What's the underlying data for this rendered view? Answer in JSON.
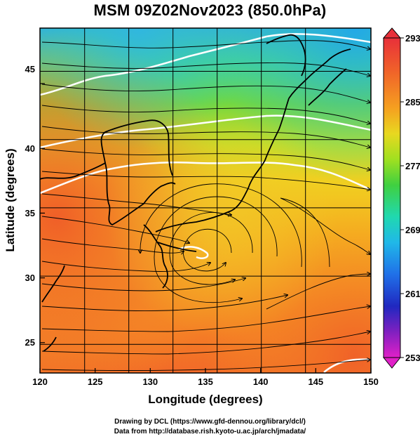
{
  "title": "MSM 09Z02Nov2023 (850.0hPa)",
  "credits": {
    "line1": "Drawing by DCL (https://www.gfd-dennou.org/library/dcl/)",
    "line2": "Data from http://database.rish.kyoto-u.ac.jp/arch/jmadata/"
  },
  "map": {
    "x_axis": {
      "label": "Longitude (degrees)",
      "ticks": [
        "120",
        "125",
        "130",
        "135",
        "140",
        "145",
        "150"
      ],
      "range": [
        120,
        150
      ]
    },
    "y_axis": {
      "label": "Latitude  (degrees)",
      "ticks": [
        "25",
        "30",
        "35",
        "40",
        "45"
      ],
      "range": [
        22.5,
        47.5
      ]
    },
    "field": "temperature (K) with streamlines and white contours",
    "low_center": {
      "lon": 134.5,
      "lat": 32.5
    }
  },
  "colorbar": {
    "ticks": [
      "293",
      "285",
      "277",
      "269",
      "261",
      "253"
    ],
    "colors": [
      "#e8303a",
      "#f06a2a",
      "#f5a020",
      "#f0d020",
      "#c8e020",
      "#6ad830",
      "#24c850",
      "#20d8b0",
      "#20c0e8",
      "#2080e8",
      "#2030c8",
      "#8020c0",
      "#e020c8"
    ]
  }
}
